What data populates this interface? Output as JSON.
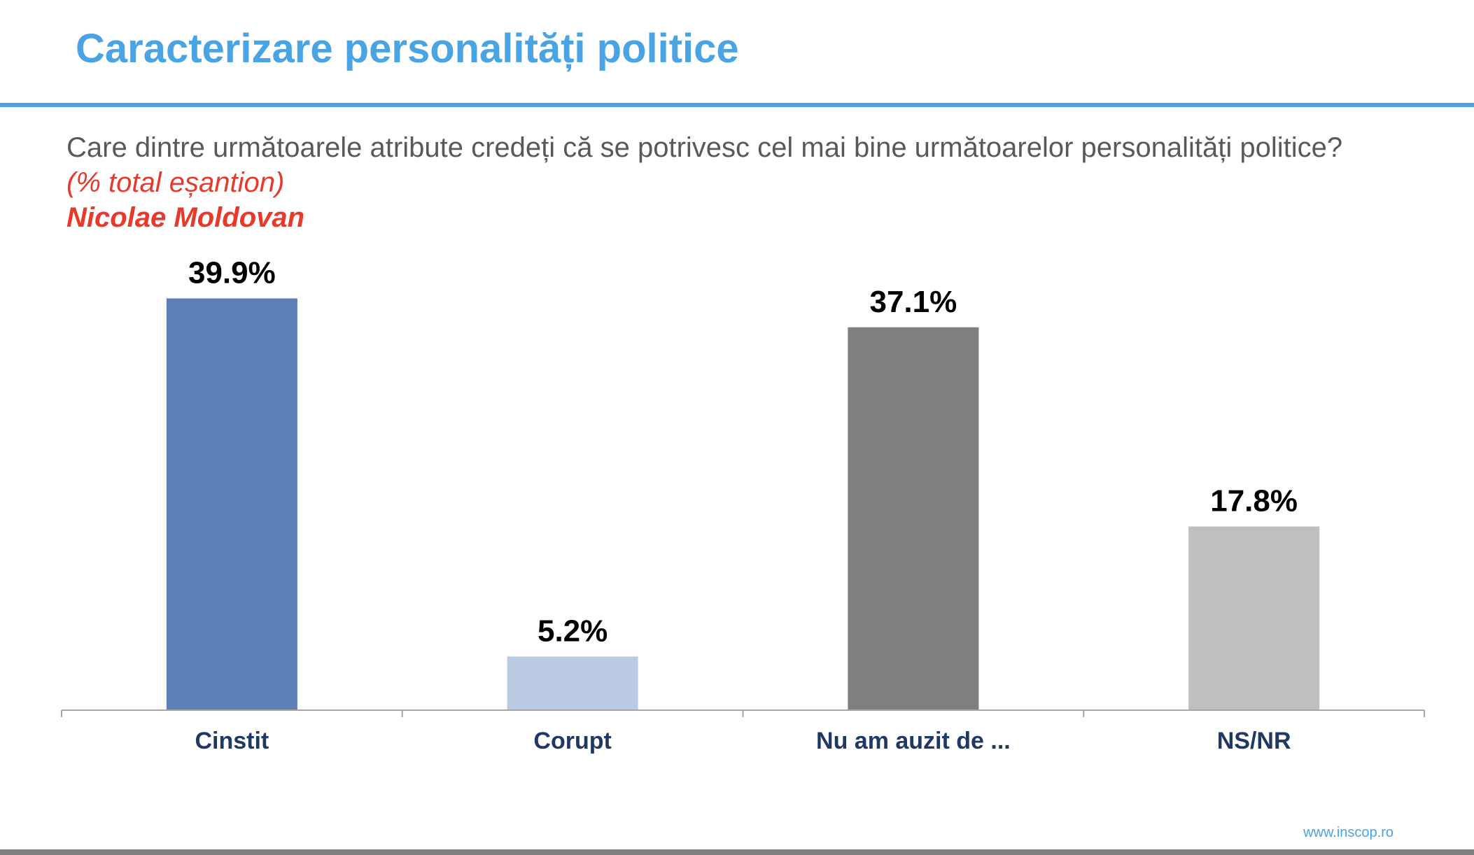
{
  "slide": {
    "title": "Caracterizare personalități politice",
    "question": "Care dintre următoarele atribute credeți că se potrivesc cel mai bine următoarelor personalități politice?",
    "sample_note": "(% total eșantion)",
    "person_name": "Nicolae Moldovan",
    "footer_url": "www.inscop.ro"
  },
  "colors": {
    "accent": "#4aa3e3",
    "name_red": "#e8392b",
    "axis": "#a6a6a6",
    "category_text": "#1f3864"
  },
  "chart_data": {
    "type": "bar",
    "title": "",
    "xlabel": "",
    "ylabel": "",
    "ylim": [
      0,
      40
    ],
    "grid": false,
    "categories": [
      "Cinstit",
      "Corupt",
      "Nu am auzit de ...",
      "NS/NR"
    ],
    "values": [
      39.9,
      5.2,
      37.1,
      17.8
    ],
    "value_labels": [
      "39.9%",
      "5.2%",
      "37.1%",
      "17.8%"
    ],
    "bar_colors": [
      "#5b7fb6",
      "#bccbe4",
      "#7f7f7f",
      "#bfbfbf"
    ]
  }
}
